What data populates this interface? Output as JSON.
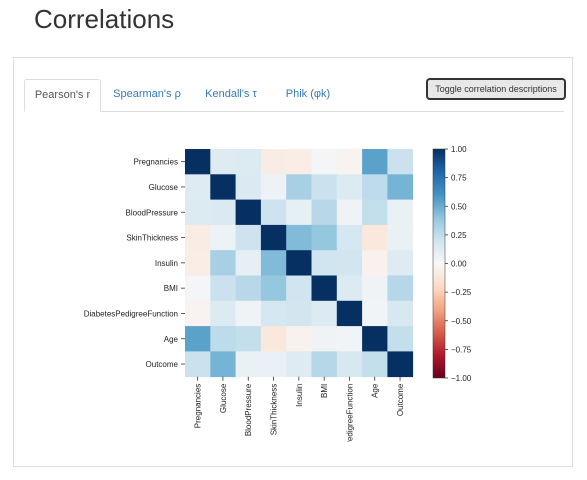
{
  "page_title": "Correlations",
  "tabs": [
    {
      "label": "Pearson's r",
      "active": true
    },
    {
      "label": "Spearman's ρ",
      "active": false
    },
    {
      "label": "Kendall's τ",
      "active": false
    },
    {
      "label": "Phik (φk)",
      "active": false
    }
  ],
  "toggle_button_label": "Toggle correlation descriptions",
  "chart_data": {
    "type": "heatmap",
    "variables": [
      "Pregnancies",
      "Glucose",
      "BloodPressure",
      "SkinThickness",
      "Insulin",
      "BMI",
      "DiabetesPedigreeFunction",
      "Age",
      "Outcome"
    ],
    "x_tick_labels": [
      "Pregnancies",
      "Glucose",
      "BloodPressure",
      "SkinThickness",
      "Insulin",
      "BMI",
      "DiabetesPedigreeFunction",
      "Age",
      "Outcome"
    ],
    "values": [
      [
        1.0,
        0.13,
        0.14,
        -0.08,
        -0.07,
        0.02,
        -0.03,
        0.54,
        0.22
      ],
      [
        0.13,
        1.0,
        0.15,
        0.06,
        0.33,
        0.22,
        0.14,
        0.26,
        0.47
      ],
      [
        0.14,
        0.15,
        1.0,
        0.21,
        0.09,
        0.28,
        0.04,
        0.24,
        0.07
      ],
      [
        -0.08,
        0.06,
        0.21,
        1.0,
        0.44,
        0.39,
        0.18,
        -0.11,
        0.07
      ],
      [
        -0.07,
        0.33,
        0.09,
        0.44,
        1.0,
        0.2,
        0.19,
        -0.04,
        0.13
      ],
      [
        0.02,
        0.22,
        0.28,
        0.39,
        0.2,
        1.0,
        0.14,
        0.04,
        0.29
      ],
      [
        -0.03,
        0.14,
        0.04,
        0.18,
        0.19,
        0.14,
        1.0,
        0.03,
        0.17
      ],
      [
        0.54,
        0.26,
        0.24,
        -0.11,
        -0.04,
        0.04,
        0.03,
        1.0,
        0.24
      ],
      [
        0.22,
        0.47,
        0.07,
        0.07,
        0.13,
        0.29,
        0.17,
        0.24,
        1.0
      ]
    ],
    "colorbar": {
      "vmin": -1.0,
      "vmax": 1.0,
      "ticks": [
        1.0,
        0.75,
        0.5,
        0.25,
        0.0,
        -0.25,
        -0.5,
        -0.75,
        -1.0
      ],
      "tick_labels": [
        "1.00",
        "0.75",
        "0.50",
        "0.25",
        "0.00",
        "−0.25",
        "−0.50",
        "−0.75",
        "−1.00"
      ],
      "colormap": "RdBu",
      "stops": [
        "#67001f",
        "#b2182b",
        "#d6604d",
        "#f4a582",
        "#fddbc7",
        "#f7f7f7",
        "#d1e5f0",
        "#92c5de",
        "#4393c3",
        "#2166ac",
        "#053061"
      ]
    }
  }
}
